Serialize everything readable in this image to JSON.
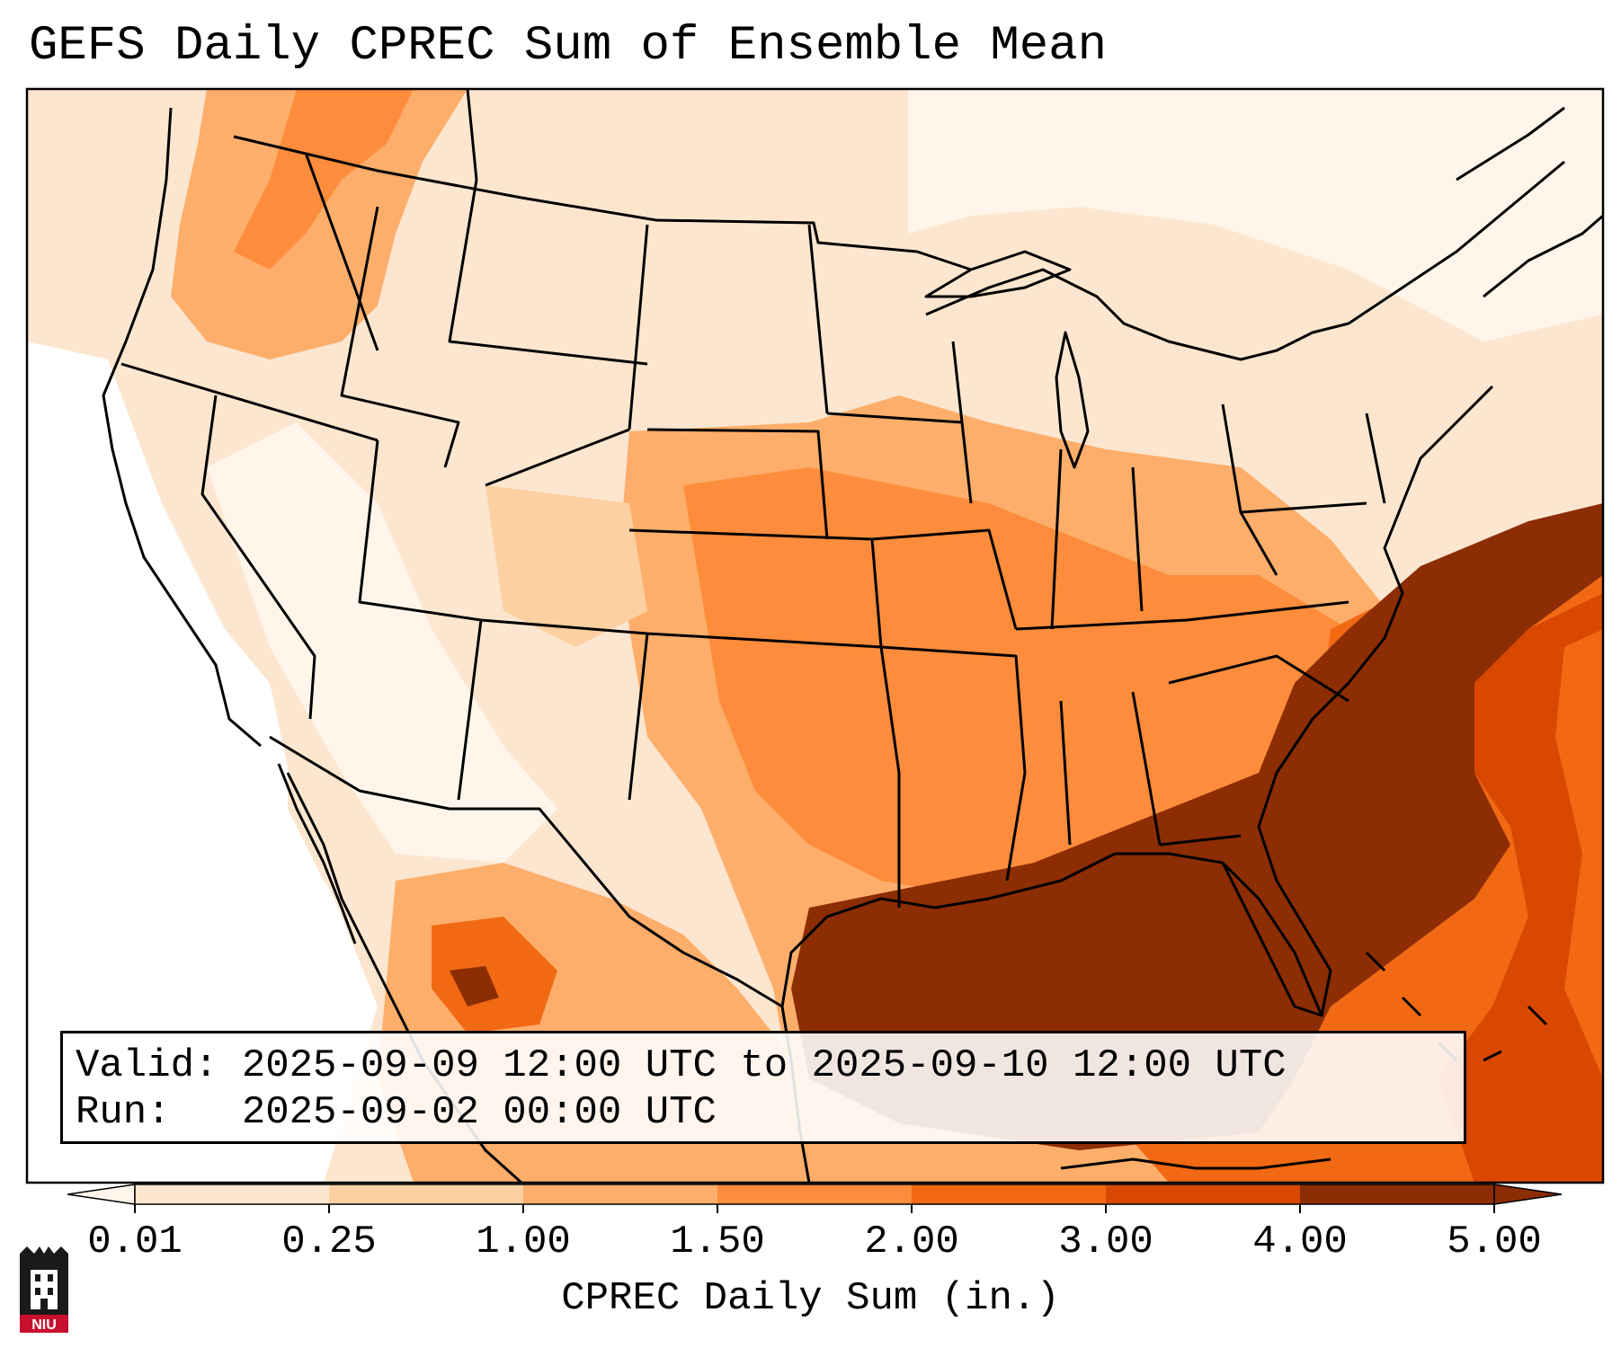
{
  "title": "GEFS Daily CPREC Sum of Ensemble Mean",
  "validity": {
    "valid_label": "Valid:",
    "valid_value": "2025-09-09 12:00 UTC to 2025-09-10 12:00 UTC",
    "run_label": "Run:",
    "run_value": "2025-09-02 00:00 UTC"
  },
  "colorbar": {
    "label": "CPREC Daily Sum (in.)",
    "ticks": [
      "0.01",
      "0.25",
      "1.00",
      "1.50",
      "2.00",
      "3.00",
      "4.00",
      "5.00"
    ],
    "colors": [
      "#fff5eb",
      "#fee6ce",
      "#fdd0a2",
      "#fdae6b",
      "#fd8d3c",
      "#f16913",
      "#d94801",
      "#8c2d04"
    ],
    "extend": "both"
  },
  "logo": {
    "text": "NIU",
    "colors": {
      "red": "#c8102e",
      "black": "#1a1a1a"
    }
  },
  "map": {
    "projection": "Lambert Conformal",
    "region": "Continental United States",
    "heaviest_precip_region": "Southeast coast, Gulf of Mexico and western Atlantic"
  }
}
